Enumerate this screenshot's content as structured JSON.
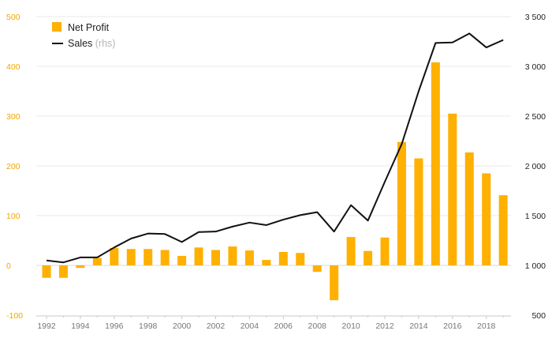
{
  "chart_data": {
    "type": "bar",
    "x": [
      1992,
      1993,
      1994,
      1995,
      1996,
      1997,
      1998,
      1999,
      2000,
      2001,
      2002,
      2003,
      2004,
      2005,
      2006,
      2007,
      2008,
      2009,
      2010,
      2011,
      2012,
      2013,
      2014,
      2015,
      2016,
      2017,
      2018,
      2019
    ],
    "x_tick_labels": [
      "1992",
      "1994",
      "1996",
      "1998",
      "2000",
      "2002",
      "2004",
      "2006",
      "2008",
      "2010",
      "2012",
      "2014",
      "2016",
      "2018"
    ],
    "series": [
      {
        "name": "Net Profit",
        "type": "bar",
        "axis": "left",
        "color": "#ffb000",
        "values": [
          -25,
          -25,
          -5,
          15,
          35,
          33,
          33,
          31,
          19,
          36,
          31,
          38,
          30,
          11,
          27,
          25,
          -13,
          -70,
          57,
          29,
          56,
          248,
          215,
          408,
          305,
          227,
          185,
          141
        ]
      },
      {
        "name": "Sales",
        "name_suffix": "(rhs)",
        "type": "line",
        "axis": "right",
        "color": "#111111",
        "values": [
          1050,
          1030,
          1080,
          1080,
          1180,
          1270,
          1320,
          1315,
          1235,
          1335,
          1340,
          1390,
          1430,
          1405,
          1460,
          1505,
          1535,
          1340,
          1605,
          1450,
          1840,
          2220,
          2750,
          3235,
          3240,
          3330,
          3190,
          3265
        ]
      }
    ],
    "y_left": {
      "lim": [
        -100,
        500
      ],
      "ticks": [
        "500",
        "400",
        "300",
        "200",
        "100",
        "0",
        "-100"
      ]
    },
    "y_right": {
      "lim": [
        500,
        3500
      ],
      "ticks": [
        "3 500",
        "3 000",
        "2 500",
        "2 000",
        "1 500",
        "1 000",
        "500"
      ]
    },
    "title": "",
    "xlabel": "",
    "ylabel": "",
    "grid": true,
    "legend": "top-left"
  },
  "colors": {
    "bar": "#ffb000",
    "line": "#111111",
    "left_axis_text": "#f0a800",
    "grid": "#e8e8e8"
  }
}
